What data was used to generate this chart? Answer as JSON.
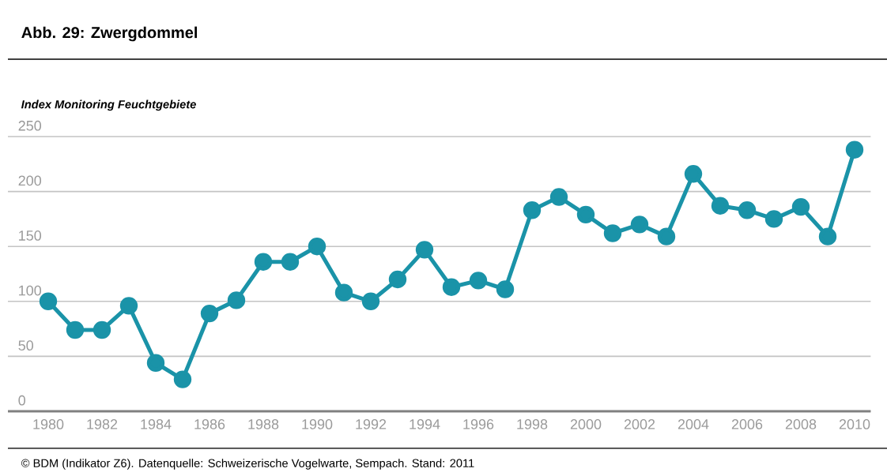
{
  "chart_data": {
    "type": "line",
    "title": "Abb. 29: Zwergdommel",
    "ylabel": "Index Monitoring Feuchtgebiete",
    "annotations": [
      "© BDM (Indikator Z6). Datenquelle: Schweizerische Vogelwarte, Sempach. Stand: 2011"
    ],
    "x": [
      1980,
      1981,
      1982,
      1983,
      1984,
      1985,
      1986,
      1987,
      1988,
      1989,
      1990,
      1991,
      1992,
      1993,
      1994,
      1995,
      1996,
      1997,
      1998,
      1999,
      2000,
      2001,
      2002,
      2003,
      2004,
      2005,
      2006,
      2007,
      2008,
      2009,
      2010
    ],
    "series": [
      {
        "color": "#1a93a8",
        "values": [
          100,
          74,
          74,
          96,
          44,
          29,
          89,
          101,
          136,
          136,
          150,
          108,
          100,
          120,
          147,
          113,
          119,
          111,
          183,
          195,
          179,
          162,
          170,
          159,
          216,
          187,
          183,
          175,
          186,
          159,
          238
        ]
      }
    ],
    "xlim": [
      1978.5,
      2010.6
    ],
    "xticks": [
      1980,
      1982,
      1984,
      1986,
      1988,
      1990,
      1992,
      1994,
      1996,
      1998,
      2000,
      2002,
      2004,
      2006,
      2008,
      2010
    ],
    "ylim": [
      0,
      250
    ],
    "yticks": [
      0,
      50,
      100,
      150,
      200,
      250
    ],
    "grid": "y",
    "marker": "circle",
    "line_style": "solid"
  }
}
